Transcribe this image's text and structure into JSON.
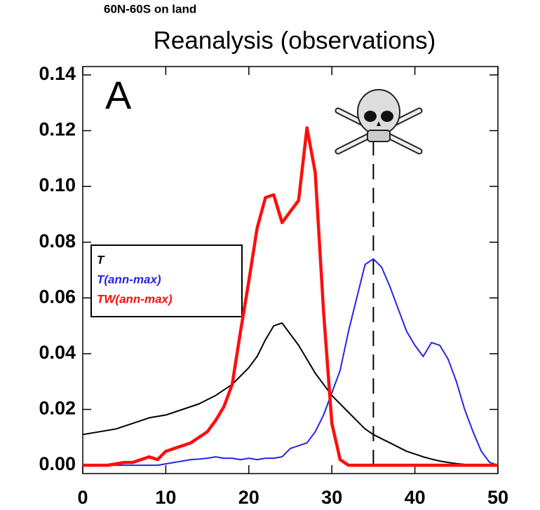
{
  "chart_data": {
    "type": "line",
    "subtitle": "60N-60S on land",
    "title": "Reanalysis (observations)",
    "panel_label": "A",
    "x": [
      0,
      1,
      2,
      3,
      4,
      5,
      6,
      7,
      8,
      9,
      10,
      11,
      12,
      13,
      14,
      15,
      16,
      17,
      18,
      19,
      20,
      21,
      22,
      23,
      24,
      25,
      26,
      27,
      28,
      29,
      30,
      31,
      32,
      33,
      34,
      35,
      36,
      37,
      38,
      39,
      40,
      41,
      42,
      43,
      44,
      45,
      46,
      47,
      48,
      49,
      50
    ],
    "series": [
      {
        "name": "T",
        "color": "#000000",
        "width": 2,
        "values": [
          0.011,
          0.0115,
          0.012,
          0.0125,
          0.013,
          0.014,
          0.015,
          0.016,
          0.017,
          0.0175,
          0.018,
          0.019,
          0.02,
          0.021,
          0.022,
          0.0235,
          0.025,
          0.027,
          0.029,
          0.032,
          0.035,
          0.039,
          0.045,
          0.05,
          0.051,
          0.047,
          0.043,
          0.038,
          0.033,
          0.029,
          0.025,
          0.022,
          0.019,
          0.016,
          0.013,
          0.011,
          0.0095,
          0.008,
          0.0065,
          0.005,
          0.004,
          0.003,
          0.0022,
          0.0015,
          0.001,
          0.0006,
          0.0003,
          0.0001,
          0,
          0,
          0
        ]
      },
      {
        "name": "T(ann-max)",
        "color": "#2424e8",
        "width": 2,
        "values": [
          0,
          0,
          0,
          0,
          0,
          0,
          0,
          0,
          0,
          0,
          0.0005,
          0.001,
          0.0015,
          0.002,
          0.0022,
          0.0025,
          0.003,
          0.0025,
          0.0025,
          0.002,
          0.0025,
          0.002,
          0.0025,
          0.0025,
          0.003,
          0.006,
          0.007,
          0.008,
          0.012,
          0.018,
          0.026,
          0.034,
          0.048,
          0.06,
          0.072,
          0.074,
          0.071,
          0.064,
          0.056,
          0.048,
          0.043,
          0.039,
          0.044,
          0.043,
          0.038,
          0.03,
          0.02,
          0.012,
          0.005,
          0.001,
          0
        ]
      },
      {
        "name": "TW(ann-max)",
        "color": "#ff0d0d",
        "width": 4.5,
        "values": [
          0,
          0,
          0,
          0,
          0.0005,
          0.001,
          0.001,
          0.002,
          0.003,
          0.002,
          0.005,
          0.006,
          0.007,
          0.008,
          0.01,
          0.012,
          0.016,
          0.021,
          0.029,
          0.048,
          0.066,
          0.085,
          0.096,
          0.097,
          0.087,
          0.091,
          0.095,
          0.121,
          0.105,
          0.055,
          0.015,
          0.002,
          0,
          0,
          0,
          0,
          0,
          0,
          0,
          0,
          0,
          0,
          0,
          0,
          0,
          0,
          0,
          0,
          0,
          0,
          0
        ]
      }
    ],
    "reference_line_x": 35,
    "xlim": [
      0,
      50
    ],
    "xticks": [
      0,
      10,
      20,
      30,
      40,
      50
    ],
    "ylim": [
      -0.003,
      0.143
    ],
    "yticks": [
      {
        "value": 0,
        "label": "0.00"
      },
      {
        "value": 0.02,
        "label": "0.02"
      },
      {
        "value": 0.04,
        "label": "0.04"
      },
      {
        "value": 0.06,
        "label": "0.06"
      },
      {
        "value": 0.08,
        "label": "0.08"
      },
      {
        "value": 0.1,
        "label": "0.10"
      },
      {
        "value": 0.12,
        "label": "0.12"
      },
      {
        "value": 0.14,
        "label": "0.14"
      }
    ],
    "legend_position": "left",
    "grid": false
  }
}
